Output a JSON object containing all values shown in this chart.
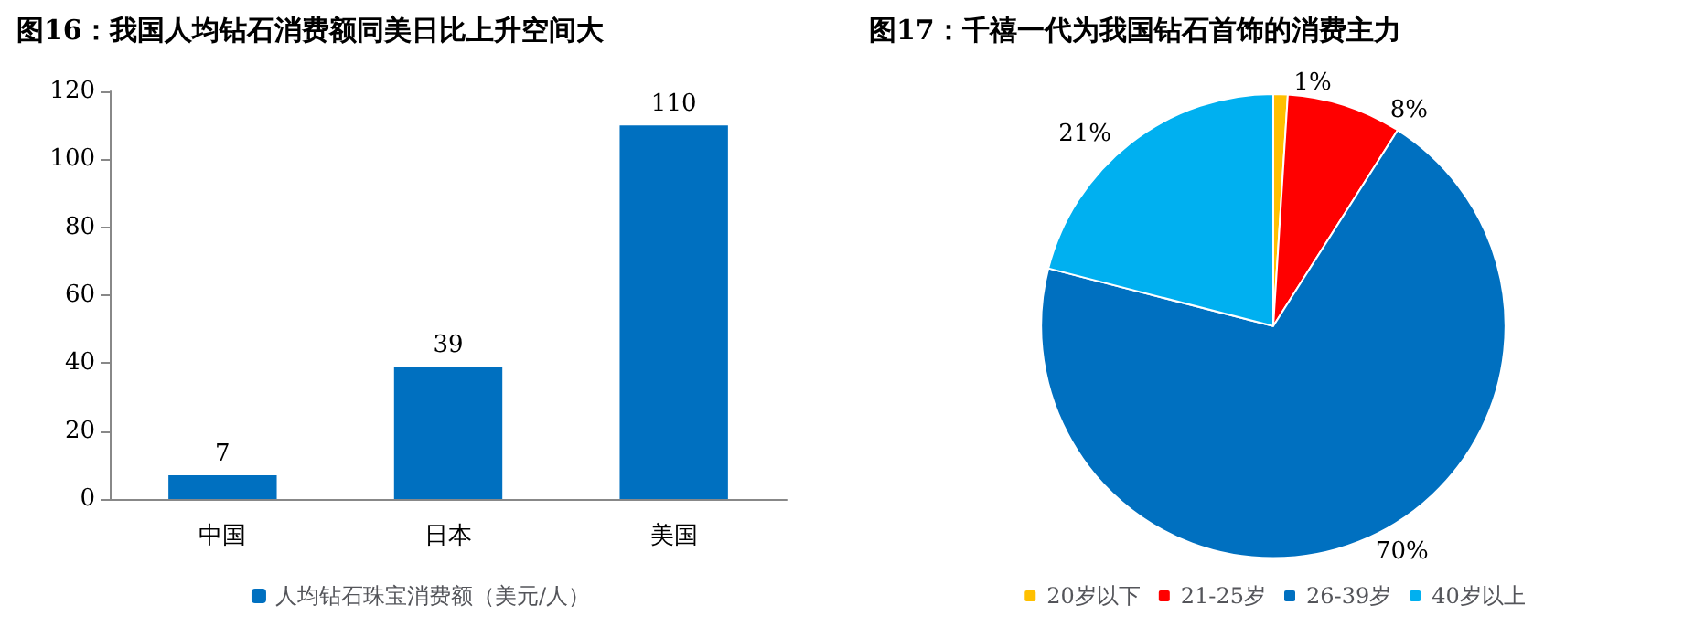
{
  "chart_data": [
    {
      "type": "bar",
      "title": "图16：我国人均钻石消费额同美日比上升空间大",
      "categories": [
        "中国",
        "日本",
        "美国"
      ],
      "series": [
        {
          "name": "人均钻石珠宝消费额（美元/人）",
          "color": "#0070c0",
          "values": [
            7,
            39,
            110
          ]
        }
      ],
      "ylim": [
        0,
        120
      ],
      "yticks": [
        0,
        20,
        40,
        60,
        80,
        100,
        120
      ],
      "grid": false,
      "legend": "bottom",
      "data_labels": true
    },
    {
      "type": "pie",
      "title": "图17：千禧一代为我国钻石首饰的消费主力",
      "categories": [
        "20岁以下",
        "21-25岁",
        "26-39岁",
        "40岁以上"
      ],
      "values": [
        1,
        8,
        70,
        21
      ],
      "value_labels": [
        "1%",
        "8%",
        "70%",
        "21%"
      ],
      "colors": [
        "#ffc000",
        "#ff0000",
        "#0070c0",
        "#00b0f0"
      ],
      "legend": "bottom"
    }
  ]
}
